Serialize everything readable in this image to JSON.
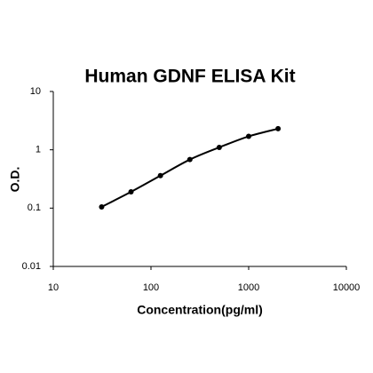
{
  "chart_data": {
    "type": "line",
    "title": "Human GDNF ELISA Kit",
    "x_label": "Concentration(pg/ml)",
    "y_label": "O.D.",
    "x": [
      31.25,
      62.5,
      125,
      250,
      500,
      1000,
      2000
    ],
    "values": [
      0.105,
      0.19,
      0.36,
      0.68,
      1.1,
      1.7,
      2.3
    ],
    "color": "#000000",
    "markers": true,
    "xlim": [
      10,
      10000
    ],
    "xticks": [
      10,
      100,
      1000,
      10000
    ],
    "ylim": [
      0.01,
      10
    ],
    "yticks": [
      0.01,
      0.1,
      1,
      10
    ],
    "log_x": true,
    "log_y": true,
    "grid": false
  }
}
